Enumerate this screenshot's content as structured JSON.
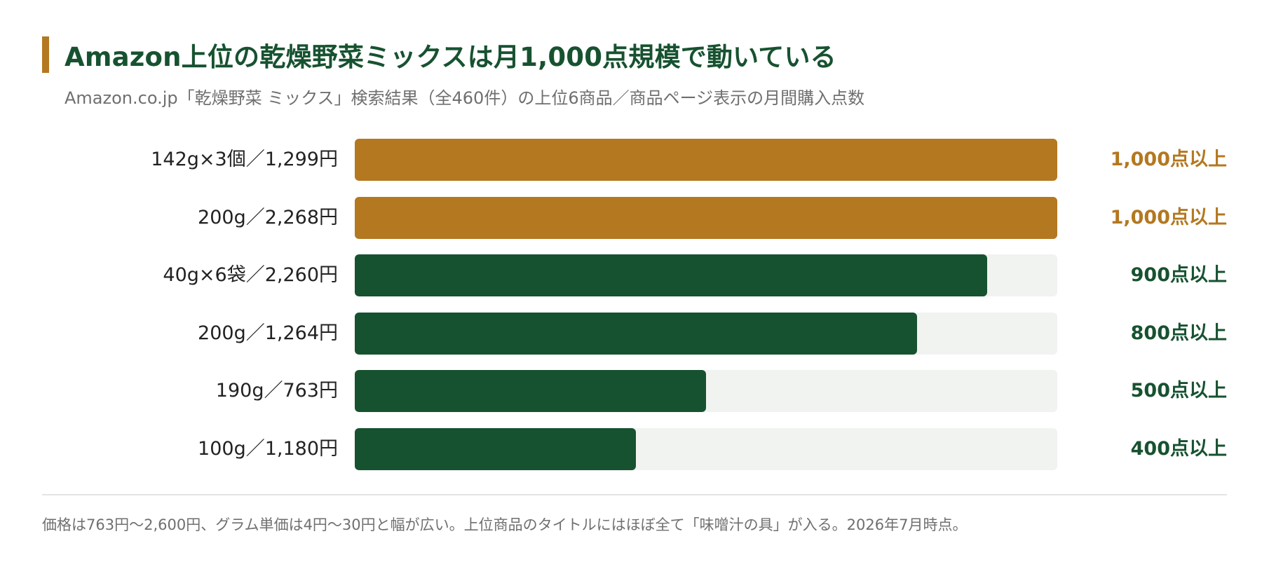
{
  "header": {
    "title": "Amazon上位の乾燥野菜ミックスは月1,000点規模で動いている",
    "subtitle": "Amazon.co.jp「乾燥野菜 ミックス」検索結果（全460件）の上位6商品／商品ページ表示の月間購入点数"
  },
  "footer": {
    "note": "価格は763円〜2,600円、グラム単価は4円〜30円と幅が広い。上位商品のタイトルにはほぼ全て「味噌汁の具」が入る。2026年7月時点。"
  },
  "colors": {
    "highlight": "#b47820",
    "primary": "#175230",
    "track": "#f1f3f1",
    "title": "#175230"
  },
  "chart_data": {
    "type": "bar",
    "orientation": "horizontal",
    "title": "Amazon上位の乾燥野菜ミックスは月1,000点規模で動いている",
    "subtitle": "Amazon.co.jp「乾燥野菜 ミックス」検索結果（全460件）の上位6商品／商品ページ表示の月間購入点数",
    "xlim": [
      0,
      1000
    ],
    "grid": false,
    "categories": [
      "142g×3個／1,299円",
      "200g／2,268円",
      "40g×6袋／2,260円",
      "200g／1,264円",
      "190g／763円",
      "100g／1,180円"
    ],
    "values": [
      1000,
      1000,
      900,
      800,
      500,
      400
    ],
    "value_labels": [
      "1,000点以上",
      "1,000点以上",
      "900点以上",
      "800点以上",
      "500点以上",
      "400点以上"
    ],
    "highlight": [
      true,
      true,
      false,
      false,
      false,
      false
    ]
  }
}
